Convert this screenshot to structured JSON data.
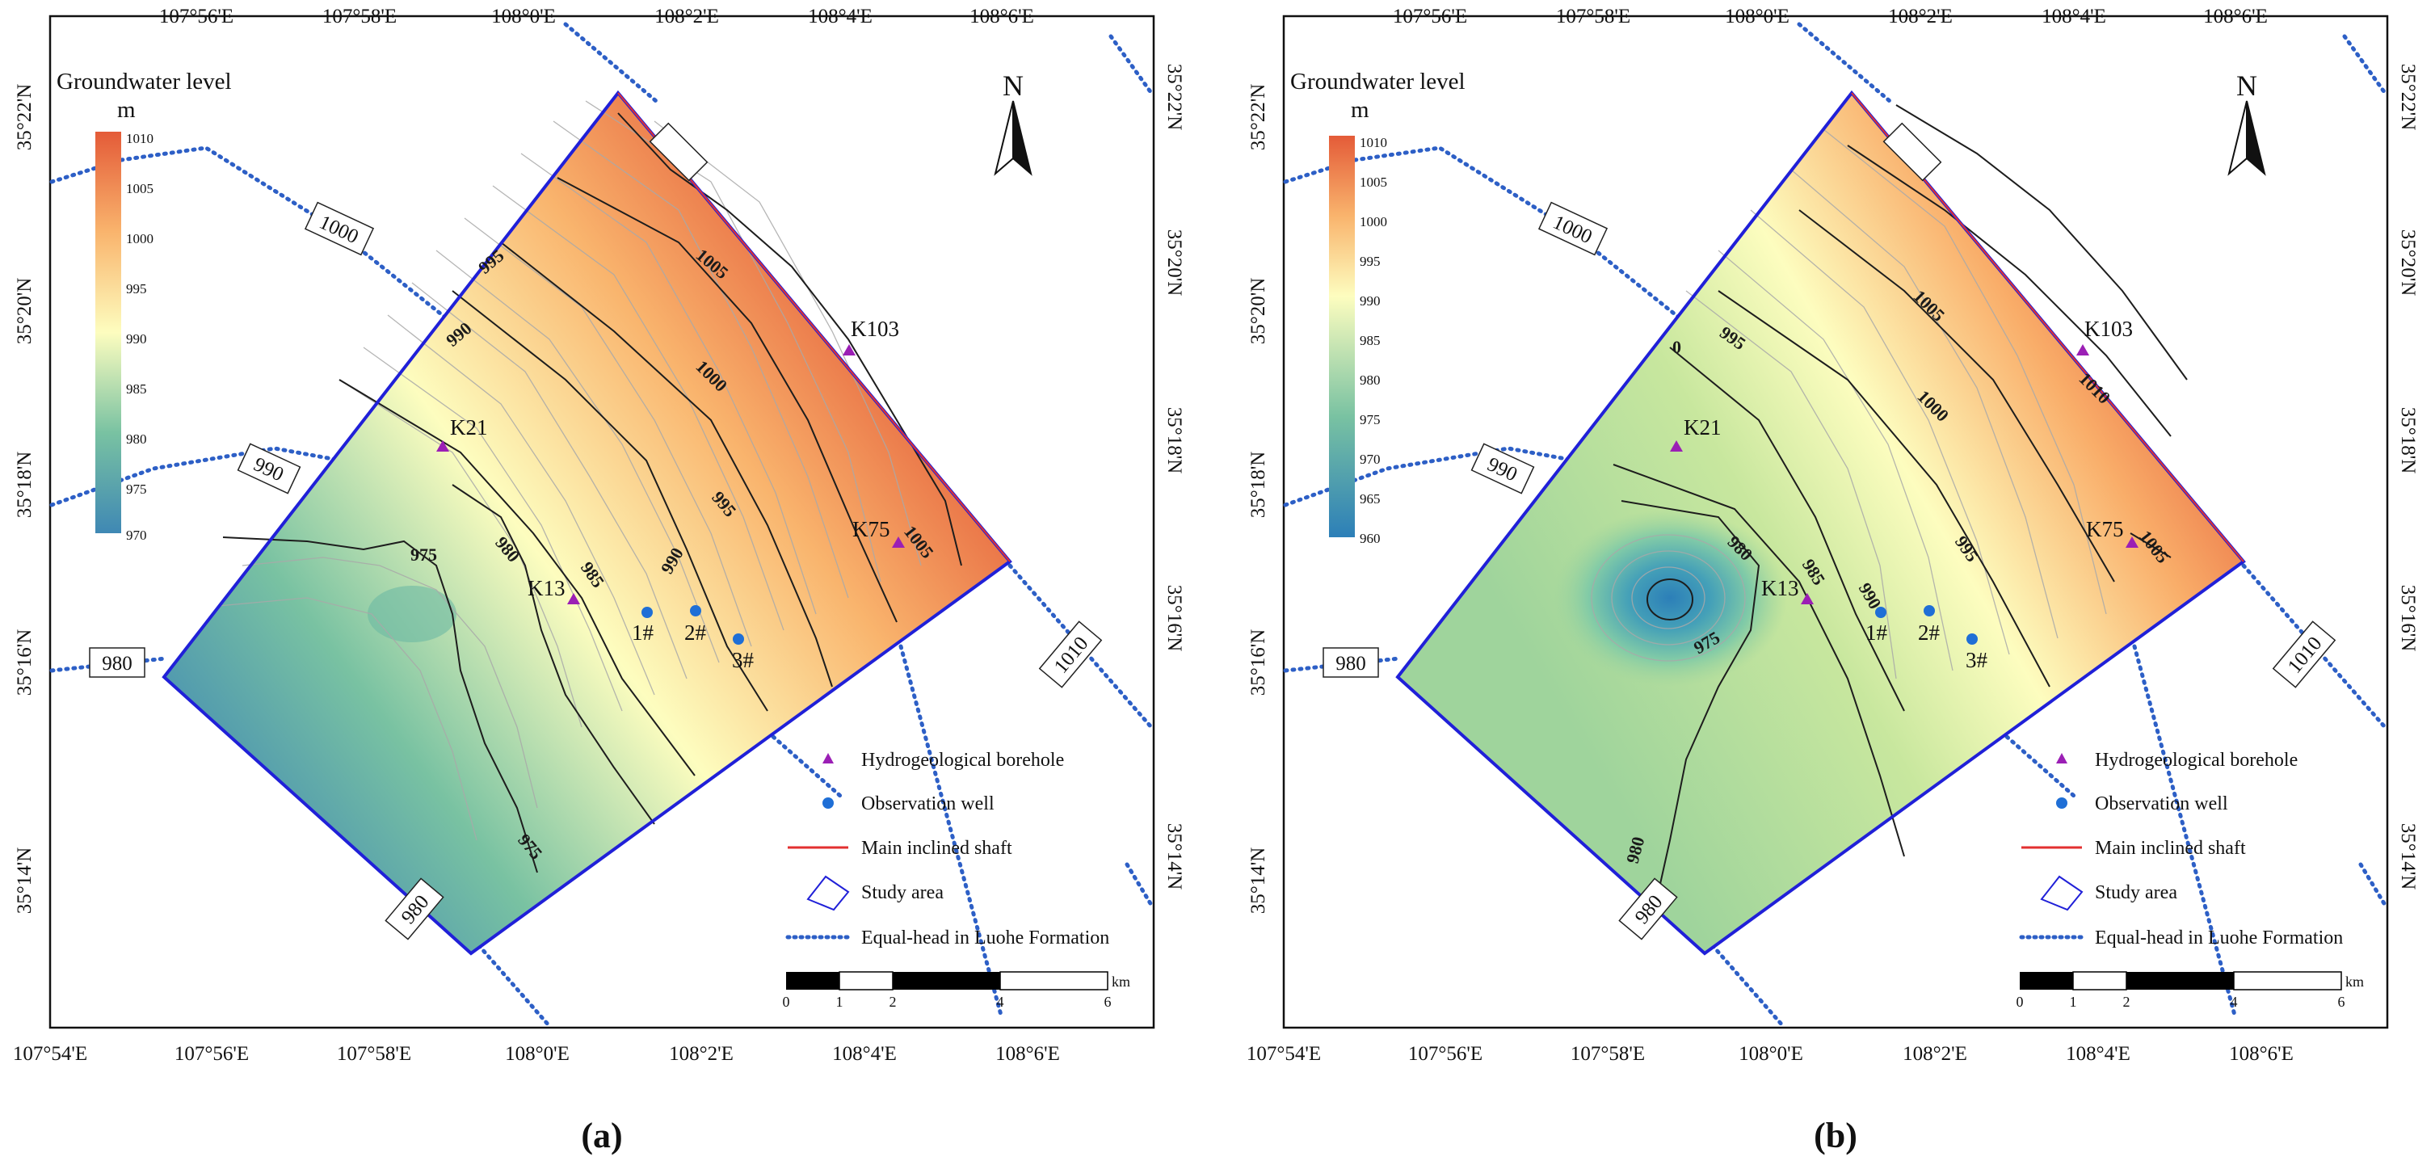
{
  "colors": {
    "low": "#3f88b4",
    "mid": "#fdfdbf",
    "high": "#e45b38",
    "boundary": "#2020d8",
    "equal_head": "#2d5fc6",
    "borehole": "#9b1fb5",
    "well": "#1f6fd6",
    "shaft": "#e23030",
    "contour": "#1d1d1d"
  },
  "panels": [
    {
      "label": "(a)",
      "top_lon": [
        "107°56'E",
        "107°58'E",
        "108°0'E",
        "108°2'E",
        "108°4'E",
        "108°6'E"
      ],
      "bottom_lon": [
        "107°54'E",
        "107°56'E",
        "107°58'E",
        "108°0'E",
        "108°2'E",
        "108°4'E",
        "108°6'E"
      ],
      "left_lat": [
        "35°22'N",
        "35°20'N",
        "35°18'N",
        "35°16'N",
        "35°14'N"
      ],
      "right_lat": [
        "35°22'N",
        "35°20'N",
        "35°18'N",
        "35°16'N",
        "35°14'N"
      ],
      "colorbar": {
        "title": "Groundwater level",
        "unit": "m",
        "ticks": [
          "1010",
          "1005",
          "1000",
          "995",
          "990",
          "985",
          "980",
          "975",
          "970"
        ]
      },
      "contour_labels": [
        "995",
        "990",
        "975",
        "980",
        "985",
        "990",
        "1005",
        "1000",
        "995",
        "1005",
        "975"
      ],
      "equal_head_labels": [
        "1000",
        "990",
        "980",
        "1010",
        "980"
      ],
      "boreholes": [
        "K103",
        "K21",
        "K13",
        "K75"
      ],
      "wells": [
        "1#",
        "2#",
        "3#"
      ]
    },
    {
      "label": "(b)",
      "top_lon": [
        "107°56'E",
        "107°58'E",
        "108°0'E",
        "108°2'E",
        "108°4'E",
        "108°6'E"
      ],
      "bottom_lon": [
        "107°54'E",
        "107°56'E",
        "107°58'E",
        "108°0'E",
        "108°2'E",
        "108°4'E",
        "108°6'E"
      ],
      "left_lat": [
        "35°22'N",
        "35°20'N",
        "35°18'N",
        "35°16'N",
        "35°14'N"
      ],
      "right_lat": [
        "35°22'N",
        "35°20'N",
        "35°18'N",
        "35°16'N",
        "35°14'N"
      ],
      "colorbar": {
        "title": "Groundwater level",
        "unit": "m",
        "ticks": [
          "1010",
          "1005",
          "1000",
          "995",
          "990",
          "985",
          "980",
          "975",
          "970",
          "965",
          "960"
        ]
      },
      "contour_labels": [
        "995",
        "0",
        "980",
        "985",
        "990",
        "975",
        "980",
        "1005",
        "1000",
        "995",
        "1010",
        "1005"
      ],
      "equal_head_labels": [
        "1000",
        "990",
        "980",
        "1010",
        "980"
      ],
      "boreholes": [
        "K103",
        "K21",
        "K13",
        "K75"
      ],
      "wells": [
        "1#",
        "2#",
        "3#"
      ]
    }
  ],
  "legend": {
    "items": [
      "Hydrogeological borehole",
      "Observation well",
      "Main inclined shaft",
      "Study area",
      "Equal-head in Luohe Formation"
    ]
  },
  "north": "N",
  "scalebar": {
    "ticks": [
      "0",
      "1",
      "2",
      "4",
      "6"
    ],
    "unit": "km"
  }
}
